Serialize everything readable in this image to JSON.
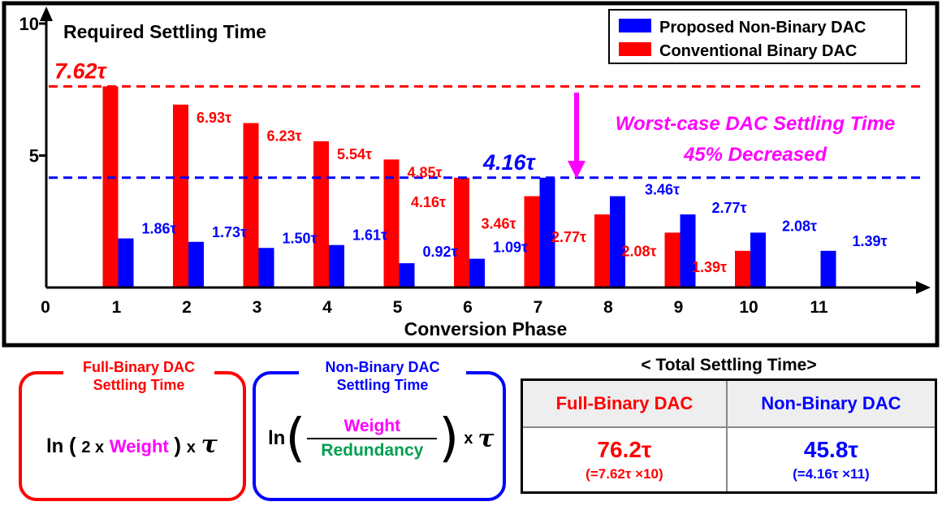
{
  "chart_data": {
    "type": "bar",
    "title": "Required Settling Time",
    "xlabel": "Conversion Phase",
    "ylabel": "",
    "x_ticks": [
      "0",
      "1",
      "2",
      "3",
      "4",
      "5",
      "6",
      "7",
      "8",
      "9",
      "10",
      "11"
    ],
    "y_ticks": [
      "5",
      "10"
    ],
    "ylim": [
      0,
      10
    ],
    "xlim": [
      0,
      11
    ],
    "grid": false,
    "legend_position": "top-right",
    "series": [
      {
        "name": "Proposed Non-Binary DAC",
        "color": "#0000ff",
        "x": [
          1,
          2,
          3,
          4,
          5,
          6,
          7,
          8,
          9,
          10,
          11
        ],
        "values": [
          1.86,
          1.73,
          1.5,
          1.61,
          0.92,
          1.09,
          4.16,
          3.46,
          2.77,
          2.08,
          1.39
        ],
        "labels": [
          "1.86τ",
          "1.73τ",
          "1.50τ",
          "1.61τ",
          "0.92τ",
          "1.09τ",
          "4.16τ",
          "3.46τ",
          "2.77τ",
          "2.08τ",
          "1.39τ"
        ]
      },
      {
        "name": "Conventional Binary DAC",
        "color": "#ff0000",
        "x": [
          1,
          2,
          3,
          4,
          5,
          6,
          7,
          8,
          9,
          10
        ],
        "values": [
          7.62,
          6.93,
          6.23,
          5.54,
          4.85,
          4.16,
          3.46,
          2.77,
          2.08,
          1.39
        ],
        "labels": [
          "7.62τ",
          "6.93τ",
          "6.23τ",
          "5.54τ",
          "4.85τ",
          "4.16τ",
          "3.46τ",
          "2.77τ",
          "2.08τ",
          "1.39τ"
        ]
      }
    ],
    "reference_lines": [
      {
        "value": 7.62,
        "color": "#ff0000",
        "label": "7.62τ"
      },
      {
        "value": 4.16,
        "color": "#0000ff",
        "label": "4.16τ"
      }
    ],
    "annotation": {
      "line1": "Worst-case DAC Settling Time",
      "line2": "45% Decreased",
      "color": "#ff00ff"
    }
  },
  "formulas": {
    "binary": {
      "title_line1": "Full-Binary DAC",
      "title_line2": "Settling Time",
      "prefix": "ln",
      "factor": "2 x",
      "weight": "Weight",
      "times": "x",
      "tau": "τ",
      "color": "#ff0000"
    },
    "nonbinary": {
      "title_line1": "Non-Binary DAC",
      "title_line2": "Settling Time",
      "prefix": "ln",
      "numerator": "Weight",
      "denominator": "Redundancy",
      "times": "x",
      "tau": "τ",
      "color": "#0000ff"
    }
  },
  "total_table": {
    "title": "< Total Settling Time>",
    "columns": [
      {
        "header": "Full-Binary DAC",
        "value": "76.2τ",
        "detail": "(=7.62τ ×10)",
        "color": "#ff0000"
      },
      {
        "header": "Non-Binary DAC",
        "value": "45.8τ",
        "detail": "(=4.16τ ×11)",
        "color": "#0000ff"
      }
    ]
  }
}
